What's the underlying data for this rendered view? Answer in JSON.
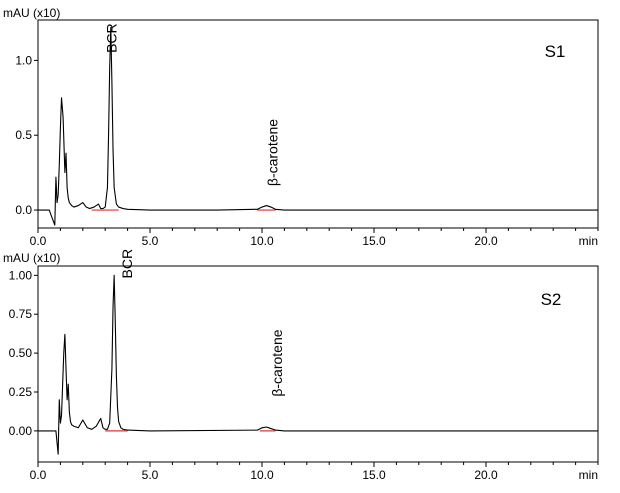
{
  "chart_data": [
    {
      "type": "line",
      "panel_label": "S1",
      "y_unit_label": "mAU (x10)",
      "x_unit_label": "min",
      "xlim": [
        0,
        25.0
      ],
      "ylim": [
        -0.12,
        1.27
      ],
      "x_ticks": [
        0,
        5,
        10,
        15,
        20
      ],
      "x_tick_labels": [
        "0.0",
        "5.0",
        "10.0",
        "15.0",
        "20.0"
      ],
      "y_ticks": [
        0,
        0.5,
        1.0
      ],
      "y_tick_labels": [
        "0.0",
        "0.5",
        "1.0"
      ],
      "grid": false,
      "trace_color": "#000000",
      "baseline_color": "#e03030",
      "series": [
        {
          "x": [
            0,
            0.5,
            0.75,
            0.8,
            0.85,
            0.9,
            0.95,
            1.0,
            1.05,
            1.12,
            1.2,
            1.25,
            1.3,
            1.35,
            1.4,
            1.45,
            1.5,
            1.6,
            1.8,
            2.0,
            2.15,
            2.3,
            2.5,
            2.7,
            2.8,
            2.9,
            3.0,
            3.1,
            3.15,
            3.2,
            3.25,
            3.3,
            3.35,
            3.4,
            3.5,
            3.6,
            3.8,
            4.0,
            5.0,
            8.0,
            9.8,
            10.0,
            10.2,
            10.4,
            10.6,
            11.0,
            15.0,
            20.0,
            25.0
          ],
          "y": [
            0,
            0,
            -0.1,
            0.22,
            0.05,
            0.1,
            0.3,
            0.55,
            0.75,
            0.62,
            0.25,
            0.38,
            0.15,
            0.08,
            0.05,
            0.04,
            0.03,
            0.02,
            0.03,
            0.05,
            0.02,
            0.01,
            0.02,
            0.04,
            0.01,
            0.01,
            0.02,
            0.15,
            0.5,
            0.95,
            1.22,
            0.85,
            0.4,
            0.15,
            0.04,
            0.02,
            0.01,
            0.005,
            0,
            0,
            0.005,
            0.02,
            0.03,
            0.02,
            0.005,
            0,
            0,
            0,
            0
          ]
        }
      ],
      "baselines": [
        [
          2.4,
          3.6
        ],
        [
          9.8,
          10.6
        ]
      ],
      "annotations": [
        {
          "text": "BCR",
          "x": 3.5,
          "y": 1.05
        },
        {
          "text": "β-carotene",
          "x": 10.7,
          "y": 0.16
        }
      ]
    },
    {
      "type": "line",
      "panel_label": "S2",
      "y_unit_label": "mAU (x10)",
      "x_unit_label": "min",
      "xlim": [
        0,
        25.0
      ],
      "ylim": [
        -0.2,
        1.06
      ],
      "x_ticks": [
        0,
        5,
        10,
        15,
        20
      ],
      "x_tick_labels": [
        "0.0",
        "5.0",
        "10.0",
        "15.0",
        "20.0"
      ],
      "y_ticks": [
        0,
        0.25,
        0.5,
        0.75,
        1.0
      ],
      "y_tick_labels": [
        "0.00",
        "0.25",
        "0.50",
        "0.75",
        "1.00"
      ],
      "grid": false,
      "trace_color": "#000000",
      "baseline_color": "#e03030",
      "series": [
        {
          "x": [
            0,
            0.8,
            0.9,
            0.95,
            1.0,
            1.05,
            1.1,
            1.15,
            1.2,
            1.25,
            1.3,
            1.35,
            1.4,
            1.45,
            1.5,
            1.6,
            1.8,
            2.0,
            2.2,
            2.4,
            2.6,
            2.8,
            2.9,
            3.0,
            3.1,
            3.2,
            3.3,
            3.35,
            3.4,
            3.45,
            3.5,
            3.55,
            3.6,
            3.7,
            3.8,
            4.0,
            5.0,
            9.8,
            10.0,
            10.2,
            10.4,
            10.6,
            11.0,
            15.0,
            20.0,
            25.0
          ],
          "y": [
            0,
            0,
            -0.15,
            0.2,
            0.05,
            0.1,
            0.3,
            0.5,
            0.62,
            0.4,
            0.2,
            0.3,
            0.12,
            0.06,
            0.04,
            0.03,
            0.02,
            0.07,
            0.02,
            0.01,
            0.03,
            0.08,
            0.02,
            0.01,
            0.01,
            0.05,
            0.4,
            0.8,
            1.0,
            0.7,
            0.35,
            0.15,
            0.06,
            0.02,
            0.01,
            0.005,
            0,
            0.005,
            0.02,
            0.025,
            0.015,
            0.005,
            0,
            0,
            0,
            0
          ]
        }
      ],
      "baselines": [
        [
          3.0,
          4.0
        ],
        [
          9.9,
          10.6
        ]
      ],
      "annotations": [
        {
          "text": "BCR",
          "x": 4.2,
          "y": 0.98
        },
        {
          "text": "β-carotene",
          "x": 10.9,
          "y": 0.22
        }
      ]
    }
  ]
}
